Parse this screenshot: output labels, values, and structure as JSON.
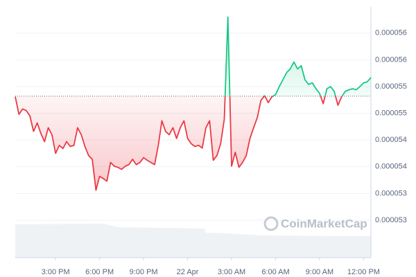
{
  "chart_data": {
    "type": "line",
    "baseline": 5.507e-05,
    "up_color": "#16c784",
    "down_color": "#ea3943",
    "grid": true,
    "watermark": "CoinMarketCap",
    "xlim": [
      0.25,
      24.5
    ],
    "xticks": [
      {
        "value": 3,
        "label": "3:00 PM"
      },
      {
        "value": 6,
        "label": "6:00 PM"
      },
      {
        "value": 9,
        "label": "9:00 PM"
      },
      {
        "value": 12,
        "label": "22 Apr"
      },
      {
        "value": 15,
        "label": "3:00 AM"
      },
      {
        "value": 18,
        "label": "6:00 AM"
      },
      {
        "value": 21,
        "label": "9:00 AM"
      },
      {
        "value": 24,
        "label": "12:00 PM"
      }
    ],
    "ylim": [
      5.205e-05,
      5.674e-05
    ],
    "yticks": [
      {
        "value": 5.625e-05,
        "label": "0.000056"
      },
      {
        "value": 5.575e-05,
        "label": "0.000056"
      },
      {
        "value": 5.525e-05,
        "label": "0.000055"
      },
      {
        "value": 5.475e-05,
        "label": "0.000055"
      },
      {
        "value": 5.425e-05,
        "label": "0.000054"
      },
      {
        "value": 5.375e-05,
        "label": "0.000054"
      },
      {
        "value": 5.325e-05,
        "label": "0.000053"
      },
      {
        "value": 5.275e-05,
        "label": "0.000053"
      }
    ],
    "x": [
      0.25,
      0.5,
      0.75,
      1,
      1.25,
      1.5,
      1.75,
      2,
      2.25,
      2.5,
      2.75,
      3,
      3.25,
      3.5,
      3.75,
      4,
      4.25,
      4.5,
      4.75,
      5,
      5.25,
      5.5,
      5.75,
      6,
      6.25,
      6.5,
      6.75,
      7,
      7.25,
      7.5,
      7.75,
      8,
      8.25,
      8.5,
      8.75,
      9,
      9.25,
      9.5,
      9.75,
      10,
      10.25,
      10.5,
      10.75,
      11,
      11.25,
      11.5,
      11.75,
      12,
      12.25,
      12.5,
      12.75,
      13,
      13.25,
      13.5,
      13.75,
      14,
      14.25,
      14.5,
      14.75,
      15,
      15.25,
      15.5,
      15.75,
      16,
      16.25,
      16.5,
      16.75,
      17,
      17.25,
      17.5,
      17.75,
      18,
      18.25,
      18.5,
      18.75,
      19,
      19.25,
      19.5,
      19.75,
      20,
      20.25,
      20.5,
      20.75,
      21,
      21.25,
      21.5,
      21.75,
      22,
      22.25,
      22.5,
      22.75,
      23,
      23.25,
      23.5,
      23.75,
      24,
      24.25,
      24.5
    ],
    "values": [
      5.506e-05,
      5.473e-05,
      5.483e-05,
      5.48e-05,
      5.47e-05,
      5.441e-05,
      5.457e-05,
      5.437e-05,
      5.422e-05,
      5.448e-05,
      5.435e-05,
      5.4e-05,
      5.415e-05,
      5.409e-05,
      5.422e-05,
      5.413e-05,
      5.415e-05,
      5.448e-05,
      5.435e-05,
      5.413e-05,
      5.396e-05,
      5.389e-05,
      5.331e-05,
      5.357e-05,
      5.353e-05,
      5.348e-05,
      5.383e-05,
      5.376e-05,
      5.374e-05,
      5.37e-05,
      5.376e-05,
      5.379e-05,
      5.389e-05,
      5.379e-05,
      5.383e-05,
      5.392e-05,
      5.387e-05,
      5.383e-05,
      5.379e-05,
      5.415e-05,
      5.461e-05,
      5.441e-05,
      5.435e-05,
      5.448e-05,
      5.428e-05,
      5.448e-05,
      5.461e-05,
      5.428e-05,
      5.418e-05,
      5.413e-05,
      5.415e-05,
      5.41e-05,
      5.448e-05,
      5.461e-05,
      5.387e-05,
      5.396e-05,
      5.418e-05,
      5.464e-05,
      5.655e-05,
      5.376e-05,
      5.402e-05,
      5.374e-05,
      5.383e-05,
      5.396e-05,
      5.428e-05,
      5.448e-05,
      5.467e-05,
      5.499e-05,
      5.508e-05,
      5.495e-05,
      5.506e-05,
      5.51e-05,
      5.525e-05,
      5.538e-05,
      5.551e-05,
      5.558e-05,
      5.571e-05,
      5.558e-05,
      5.564e-05,
      5.538e-05,
      5.529e-05,
      5.532e-05,
      5.521e-05,
      5.512e-05,
      5.493e-05,
      5.521e-05,
      5.525e-05,
      5.516e-05,
      5.49e-05,
      5.506e-05,
      5.516e-05,
      5.519e-05,
      5.521e-05,
      5.519e-05,
      5.525e-05,
      5.532e-05,
      5.534e-05,
      5.542e-05
    ]
  }
}
